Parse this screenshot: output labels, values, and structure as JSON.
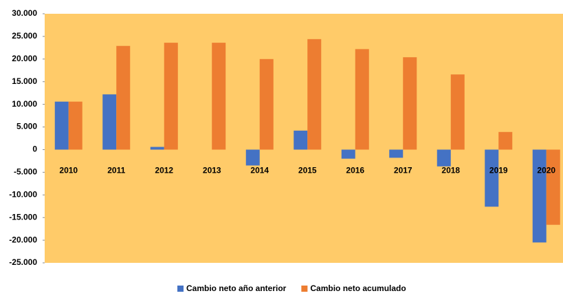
{
  "chart_data": {
    "type": "bar",
    "categories": [
      "2010",
      "2011",
      "2012",
      "2013",
      "2014",
      "2015",
      "2016",
      "2017",
      "2018",
      "2019",
      "2020"
    ],
    "series": [
      {
        "name": "Cambio neto año anterior",
        "color": "#4472c4",
        "values": [
          10600,
          12200,
          600,
          0,
          -3500,
          4200,
          -2000,
          -1800,
          -3700,
          -12600,
          -20500
        ]
      },
      {
        "name": "Cambio neto acumulado",
        "color": "#ed7d31",
        "values": [
          10600,
          22900,
          23600,
          23600,
          20000,
          24400,
          22200,
          20400,
          16600,
          3900,
          -16600
        ]
      }
    ],
    "ylim": [
      -25000,
      30000
    ],
    "yticks": [
      {
        "value": -25000,
        "label": "-25.000"
      },
      {
        "value": -20000,
        "label": "-20.000"
      },
      {
        "value": -15000,
        "label": "-15.000"
      },
      {
        "value": -10000,
        "label": "-10.000"
      },
      {
        "value": -5000,
        "label": "-5.000"
      },
      0,
      {
        "value": 5000,
        "label": "5.000"
      },
      {
        "value": 10000,
        "label": "10.000"
      },
      {
        "value": 15000,
        "label": "15.000"
      },
      {
        "value": 20000,
        "label": "20.000"
      },
      {
        "value": 25000,
        "label": "25.000"
      },
      {
        "value": 30000,
        "label": "30.000"
      }
    ],
    "background": "#ffcb69",
    "legend": "bottom"
  }
}
